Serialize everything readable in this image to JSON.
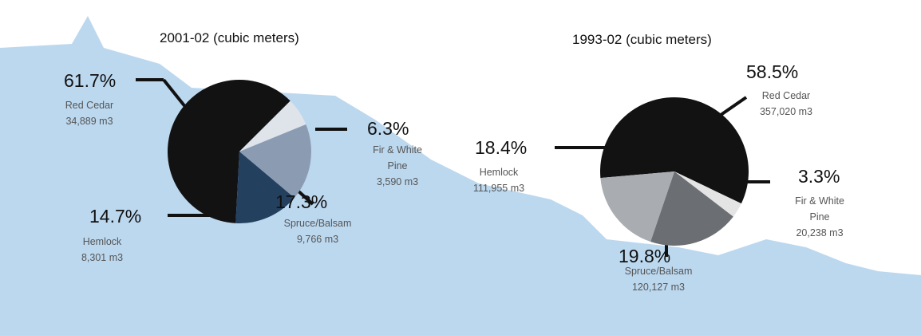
{
  "chart_data": [
    {
      "type": "pie",
      "title": "2001-02 (cubic meters)",
      "categories": [
        "Red Cedar",
        "Fir & White Pine",
        "Spruce/Balsam",
        "Hemlock"
      ],
      "values": [
        61.7,
        6.3,
        17.3,
        14.7
      ],
      "value_labels": [
        "61.7%",
        "6.3%",
        "17.3%",
        "14.7%"
      ],
      "volume_labels": [
        "34,889 m3",
        "3,590 m3",
        "9,766 m3",
        "8,301 m3"
      ],
      "colors": [
        "#121212",
        "#dfe4ea",
        "#8b9cb2",
        "#24405f"
      ]
    },
    {
      "type": "pie",
      "title": "1993-02 (cubic meters)",
      "categories": [
        "Red Cedar",
        "Fir & White Pine",
        "Spruce/Balsam",
        "Hemlock"
      ],
      "values": [
        58.5,
        3.3,
        19.8,
        18.4
      ],
      "value_labels": [
        "58.5%",
        "3.3%",
        "19.8%",
        "18.4%"
      ],
      "volume_labels": [
        "357,020 m3",
        "20,238 m3",
        "120,127 m3",
        "111,955 m3"
      ],
      "colors": [
        "#121212",
        "#e4e4e4",
        "#6b6e72",
        "#a9acb0"
      ]
    }
  ]
}
